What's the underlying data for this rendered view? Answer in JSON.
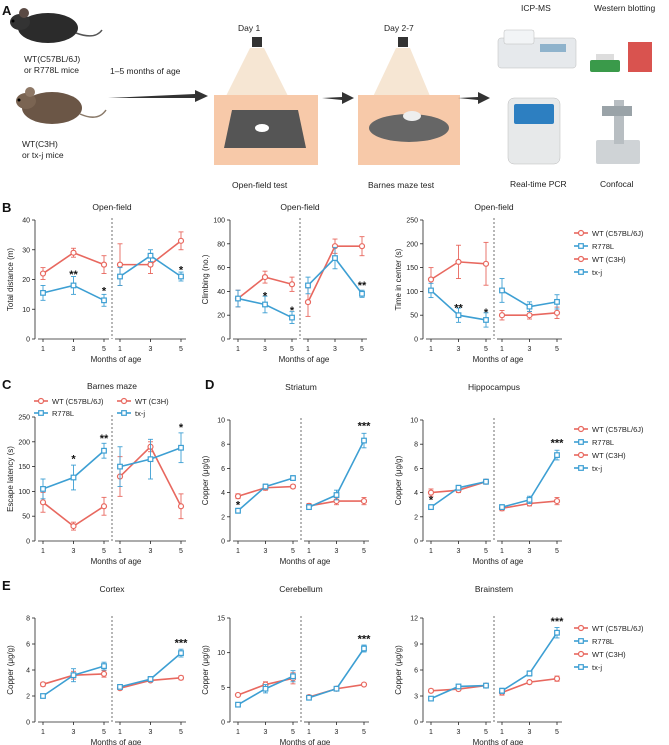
{
  "panels": {
    "A": "A",
    "B": "B",
    "C": "C",
    "D": "D",
    "E": "E"
  },
  "colors": {
    "red": "#e8685f",
    "blue": "#3d9fd3"
  },
  "schematic": {
    "mouse1_label": [
      "WT(C57BL/6J)",
      "or R778L mice"
    ],
    "mouse2_label": [
      "WT(C3H)",
      "or tx-j mice"
    ],
    "age_label": "1–5 months of age",
    "day1": "Day 1",
    "day27": "Day 2-7",
    "open_field_caption": "Open-field test",
    "barnes_caption": "Barnes maze test",
    "icpms": "ICP-MS",
    "western": "Western blotting",
    "pcr": "Real-time PCR",
    "confocal": "Confocal"
  },
  "legend4": [
    "WT (C57BL/6J)",
    "R778L",
    "WT (C3H)",
    "tx-j"
  ],
  "xlabel": "Months of age",
  "chart_data": [
    {
      "id": "B1",
      "type": "line",
      "title": "Open-field",
      "ylabel": "Total distance (m)",
      "ylim": [
        0,
        40
      ],
      "yticks": [
        0,
        10,
        20,
        30,
        40
      ],
      "x": [
        1,
        3,
        5
      ],
      "series": [
        {
          "name": "WT (C57BL/6J)",
          "group": "left",
          "color": "red",
          "values": [
            22,
            29,
            25
          ],
          "err": [
            2,
            1.5,
            3
          ]
        },
        {
          "name": "R778L",
          "group": "left",
          "color": "blue",
          "values": [
            15.5,
            18,
            13
          ],
          "err": [
            2.5,
            3,
            2
          ]
        },
        {
          "name": "WT (C3H)",
          "group": "right",
          "color": "red",
          "values": [
            25,
            25,
            33
          ],
          "err": [
            7,
            3,
            3
          ]
        },
        {
          "name": "tx-j",
          "group": "right",
          "color": "blue",
          "values": [
            21,
            28,
            21
          ],
          "err": [
            3,
            2,
            1.5
          ]
        }
      ],
      "annotations": [
        {
          "group": "left",
          "x": 3,
          "y": 20.5,
          "text": "**"
        },
        {
          "group": "left",
          "x": 5,
          "y": 15,
          "text": "*"
        },
        {
          "group": "right",
          "x": 5,
          "y": 22,
          "text": "*"
        }
      ]
    },
    {
      "id": "B2",
      "type": "line",
      "title": "Open-field",
      "ylabel": "Climbing (no.)",
      "ylim": [
        0,
        100
      ],
      "yticks": [
        0,
        20,
        40,
        60,
        80,
        100
      ],
      "x": [
        1,
        3,
        5
      ],
      "series": [
        {
          "name": "WT (C57BL/6J)",
          "group": "left",
          "color": "red",
          "values": [
            34,
            52,
            46
          ],
          "err": [
            7,
            5,
            6
          ]
        },
        {
          "name": "R778L",
          "group": "left",
          "color": "blue",
          "values": [
            34,
            29,
            18
          ],
          "err": [
            7,
            7,
            5
          ]
        },
        {
          "name": "WT (C3H)",
          "group": "right",
          "color": "red",
          "values": [
            31,
            78,
            78
          ],
          "err": [
            12,
            6,
            8
          ]
        },
        {
          "name": "tx-j",
          "group": "right",
          "color": "blue",
          "values": [
            45,
            68,
            38
          ],
          "err": [
            7,
            9,
            3
          ]
        }
      ],
      "annotations": [
        {
          "group": "left",
          "x": 3,
          "y": 33,
          "text": "*"
        },
        {
          "group": "left",
          "x": 5,
          "y": 21,
          "text": "*"
        },
        {
          "group": "right",
          "x": 5,
          "y": 42,
          "text": "**"
        }
      ]
    },
    {
      "id": "B3",
      "type": "line",
      "title": "Open-field",
      "ylabel": "Time in center (s)",
      "ylim": [
        0,
        250
      ],
      "yticks": [
        0,
        50,
        100,
        150,
        200,
        250
      ],
      "x": [
        1,
        3,
        5
      ],
      "series": [
        {
          "name": "WT (C57BL/6J)",
          "group": "left",
          "color": "red",
          "values": [
            125,
            162,
            158
          ],
          "err": [
            25,
            35,
            45
          ]
        },
        {
          "name": "R778L",
          "group": "left",
          "color": "blue",
          "values": [
            102,
            50,
            40
          ],
          "err": [
            15,
            15,
            15
          ]
        },
        {
          "name": "WT (C3H)",
          "group": "right",
          "color": "red",
          "values": [
            50,
            50,
            55
          ],
          "err": [
            10,
            8,
            12
          ]
        },
        {
          "name": "tx-j",
          "group": "right",
          "color": "blue",
          "values": [
            102,
            68,
            78
          ],
          "err": [
            25,
            10,
            15
          ]
        }
      ],
      "annotations": [
        {
          "group": "left",
          "x": 3,
          "y": 58,
          "text": "**"
        },
        {
          "group": "left",
          "x": 5,
          "y": 48,
          "text": "*"
        }
      ]
    },
    {
      "id": "C",
      "type": "line",
      "title": "Barnes maze",
      "ylabel": "Escape latency (s)",
      "ylim": [
        0,
        250
      ],
      "yticks": [
        0,
        50,
        100,
        150,
        200,
        250
      ],
      "x": [
        1,
        3,
        5
      ],
      "series": [
        {
          "name": "WT (C57BL/6J)",
          "group": "left",
          "color": "red",
          "values": [
            78,
            30,
            70
          ],
          "err": [
            20,
            8,
            18
          ]
        },
        {
          "name": "R778L",
          "group": "left",
          "color": "blue",
          "values": [
            105,
            128,
            182
          ],
          "err": [
            20,
            25,
            15
          ]
        },
        {
          "name": "WT (C3H)",
          "group": "right",
          "color": "red",
          "values": [
            130,
            190,
            70
          ],
          "err": [
            40,
            10,
            25
          ]
        },
        {
          "name": "tx-j",
          "group": "right",
          "color": "blue",
          "values": [
            150,
            165,
            188
          ],
          "err": [
            40,
            40,
            30
          ]
        }
      ],
      "annotations": [
        {
          "group": "left",
          "x": 3,
          "y": 158,
          "text": "*"
        },
        {
          "group": "left",
          "x": 5,
          "y": 200,
          "text": "**"
        },
        {
          "group": "right",
          "x": 5,
          "y": 222,
          "text": "*"
        }
      ],
      "legend": [
        "WT (C57BL/6J)",
        "WT (C3H)",
        "R778L",
        "tx-j"
      ]
    },
    {
      "id": "D1",
      "type": "line",
      "title": "Striatum",
      "ylabel": "Copper (μg/g)",
      "ylim": [
        0,
        10
      ],
      "yticks": [
        0,
        2,
        4,
        6,
        8,
        10
      ],
      "x": [
        1,
        3,
        5
      ],
      "series": [
        {
          "name": "WT (C57BL/6J)",
          "group": "left",
          "color": "red",
          "values": [
            3.7,
            4.4,
            4.5
          ],
          "err": [
            0.2,
            0.2,
            0.15
          ]
        },
        {
          "name": "R778L",
          "group": "left",
          "color": "blue",
          "values": [
            2.5,
            4.5,
            5.2
          ],
          "err": [
            0.2,
            0.2,
            0.2
          ]
        },
        {
          "name": "WT (C3H)",
          "group": "right",
          "color": "red",
          "values": [
            2.9,
            3.3,
            3.3
          ],
          "err": [
            0.2,
            0.3,
            0.3
          ]
        },
        {
          "name": "tx-j",
          "group": "right",
          "color": "blue",
          "values": [
            2.8,
            3.8,
            8.3
          ],
          "err": [
            0.2,
            0.4,
            0.6
          ]
        }
      ],
      "annotations": [
        {
          "group": "left",
          "x": 1,
          "y": 2.7,
          "text": "*"
        },
        {
          "group": "right",
          "x": 5,
          "y": 9.2,
          "text": "***"
        }
      ]
    },
    {
      "id": "D2",
      "type": "line",
      "title": "Hippocampus",
      "ylabel": "Copper (μg/g)",
      "ylim": [
        0,
        10
      ],
      "yticks": [
        0,
        2,
        4,
        6,
        8,
        10
      ],
      "x": [
        1,
        3,
        5
      ],
      "series": [
        {
          "name": "WT (C57BL/6J)",
          "group": "left",
          "color": "red",
          "values": [
            4.0,
            4.2,
            4.9
          ],
          "err": [
            0.3,
            0.2,
            0.2
          ]
        },
        {
          "name": "R778L",
          "group": "left",
          "color": "blue",
          "values": [
            2.8,
            4.4,
            4.9
          ],
          "err": [
            0.2,
            0.2,
            0.2
          ]
        },
        {
          "name": "WT (C3H)",
          "group": "right",
          "color": "red",
          "values": [
            2.7,
            3.1,
            3.3
          ],
          "err": [
            0.2,
            0.2,
            0.3
          ]
        },
        {
          "name": "tx-j",
          "group": "right",
          "color": "blue",
          "values": [
            2.8,
            3.4,
            7.1
          ],
          "err": [
            0.2,
            0.3,
            0.4
          ]
        }
      ],
      "annotations": [
        {
          "group": "left",
          "x": 1,
          "y": 3.1,
          "text": "*"
        },
        {
          "group": "right",
          "x": 5,
          "y": 7.8,
          "text": "***"
        }
      ]
    },
    {
      "id": "E1",
      "type": "line",
      "title": "Cortex",
      "ylabel": "Copper (μg/g)",
      "ylim": [
        0,
        8
      ],
      "yticks": [
        0,
        2,
        4,
        6,
        8
      ],
      "x": [
        1,
        3,
        5
      ],
      "series": [
        {
          "name": "WT (C57BL/6J)",
          "group": "left",
          "color": "red",
          "values": [
            2.9,
            3.6,
            3.7
          ],
          "err": [
            0.15,
            0.3,
            0.25
          ]
        },
        {
          "name": "R778L",
          "group": "left",
          "color": "blue",
          "values": [
            2.0,
            3.6,
            4.3
          ],
          "err": [
            0.1,
            0.5,
            0.3
          ]
        },
        {
          "name": "WT (C3H)",
          "group": "right",
          "color": "red",
          "values": [
            2.6,
            3.2,
            3.4
          ],
          "err": [
            0.1,
            0.1,
            0.15
          ]
        },
        {
          "name": "tx-j",
          "group": "right",
          "color": "blue",
          "values": [
            2.7,
            3.3,
            5.3
          ],
          "err": [
            0.1,
            0.2,
            0.3
          ]
        }
      ],
      "annotations": [
        {
          "group": "right",
          "x": 5,
          "y": 5.8,
          "text": "***"
        }
      ]
    },
    {
      "id": "E2",
      "type": "line",
      "title": "Cerebellum",
      "ylabel": "Copper (μg/g)",
      "ylim": [
        0,
        15
      ],
      "yticks": [
        0,
        5,
        10,
        15
      ],
      "x": [
        1,
        3,
        5
      ],
      "series": [
        {
          "name": "WT (C57BL/6J)",
          "group": "left",
          "color": "red",
          "values": [
            3.9,
            5.4,
            6.3
          ],
          "err": [
            0.2,
            0.4,
            0.8
          ]
        },
        {
          "name": "R778L",
          "group": "left",
          "color": "blue",
          "values": [
            2.5,
            4.8,
            6.6
          ],
          "err": [
            0.2,
            0.6,
            0.8
          ]
        },
        {
          "name": "WT (C3H)",
          "group": "right",
          "color": "red",
          "values": [
            3.6,
            4.8,
            5.4
          ],
          "err": [
            0.2,
            0.2,
            0.2
          ]
        },
        {
          "name": "tx-j",
          "group": "right",
          "color": "blue",
          "values": [
            3.5,
            4.8,
            10.6
          ],
          "err": [
            0.2,
            0.2,
            0.5
          ]
        }
      ],
      "annotations": [
        {
          "group": "right",
          "x": 5,
          "y": 11.5,
          "text": "***"
        }
      ]
    },
    {
      "id": "E3",
      "type": "line",
      "title": "Brainstem",
      "ylabel": "Copper (μg/g)",
      "ylim": [
        0,
        12
      ],
      "yticks": [
        0,
        3,
        6,
        9,
        12
      ],
      "x": [
        1,
        3,
        5
      ],
      "series": [
        {
          "name": "WT (C57BL/6J)",
          "group": "left",
          "color": "red",
          "values": [
            3.6,
            3.8,
            4.2
          ],
          "err": [
            0.2,
            0.2,
            0.2
          ]
        },
        {
          "name": "R778L",
          "group": "left",
          "color": "blue",
          "values": [
            2.7,
            4.1,
            4.2
          ],
          "err": [
            0.2,
            0.2,
            0.2
          ]
        },
        {
          "name": "WT (C3H)",
          "group": "right",
          "color": "red",
          "values": [
            3.4,
            4.6,
            5.0
          ],
          "err": [
            0.3,
            0.2,
            0.3
          ]
        },
        {
          "name": "tx-j",
          "group": "right",
          "color": "blue",
          "values": [
            3.6,
            5.6,
            10.3
          ],
          "err": [
            0.3,
            0.3,
            0.6
          ]
        }
      ],
      "annotations": [
        {
          "group": "right",
          "x": 5,
          "y": 11.2,
          "text": "***"
        }
      ]
    }
  ]
}
